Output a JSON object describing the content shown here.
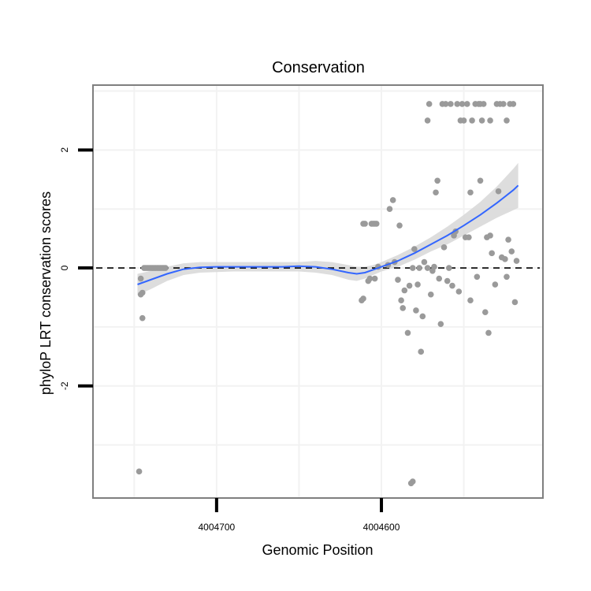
{
  "chart_data": {
    "type": "scatter",
    "title": "Conservation",
    "xlabel": "Genomic Position",
    "ylabel": "phyloP LRT conservation scores",
    "x_reversed": true,
    "xlim": [
      4004775,
      4004502
    ],
    "ylim": [
      -3.9,
      3.1
    ],
    "x_ticks": [
      {
        "value": 4004700,
        "label": "4004700"
      },
      {
        "value": 4004600,
        "label": "4004600"
      }
    ],
    "y_ticks": [
      {
        "value": 2,
        "label": "2"
      },
      {
        "value": 0,
        "label": "0"
      },
      {
        "value": -2,
        "label": "-2"
      }
    ],
    "reference_line": {
      "y": 0,
      "style": "dashed"
    },
    "grid": true,
    "colors": {
      "points": "#9a9a9a",
      "smooth": "#3366ff",
      "ribbon": "#d9d9d9",
      "panel_border": "#7f7f7f",
      "grid": "#f2f2f2",
      "reference": "#000000"
    },
    "series": [
      {
        "name": "scores",
        "points": [
          [
            4004747,
            -3.45
          ],
          [
            4004746,
            -0.18
          ],
          [
            4004746,
            -0.45
          ],
          [
            4004745,
            -0.42
          ],
          [
            4004745,
            -0.85
          ],
          [
            4004744,
            0.0
          ],
          [
            4004743,
            0.0
          ],
          [
            4004742,
            0.0
          ],
          [
            4004741,
            0.0
          ],
          [
            4004740,
            0.0
          ],
          [
            4004739,
            0.0
          ],
          [
            4004738,
            0.0
          ],
          [
            4004737,
            0.0
          ],
          [
            4004736,
            0.0
          ],
          [
            4004735,
            0.0
          ],
          [
            4004734,
            0.0
          ],
          [
            4004733,
            0.0
          ],
          [
            4004732,
            0.0
          ],
          [
            4004731,
            0.0
          ],
          [
            4004612,
            -0.55
          ],
          [
            4004611,
            -0.52
          ],
          [
            4004611,
            0.75
          ],
          [
            4004610,
            0.75
          ],
          [
            4004608,
            -0.22
          ],
          [
            4004607,
            -0.18
          ],
          [
            4004606,
            0.75
          ],
          [
            4004605,
            0.75
          ],
          [
            4004604,
            0.75
          ],
          [
            4004603,
            0.75
          ],
          [
            4004604,
            -0.18
          ],
          [
            4004602,
            0.02
          ],
          [
            4004596,
            0.05
          ],
          [
            4004595,
            1.0
          ],
          [
            4004593,
            1.15
          ],
          [
            4004592,
            0.1
          ],
          [
            4004590,
            -0.2
          ],
          [
            4004589,
            0.72
          ],
          [
            4004588,
            -0.55
          ],
          [
            4004587,
            -0.68
          ],
          [
            4004586,
            -0.38
          ],
          [
            4004584,
            -1.1
          ],
          [
            4004583,
            -0.3
          ],
          [
            4004582,
            -3.65
          ],
          [
            4004581,
            -3.62
          ],
          [
            4004581,
            0.0
          ],
          [
            4004580,
            0.32
          ],
          [
            4004579,
            -0.72
          ],
          [
            4004578,
            -0.28
          ],
          [
            4004577,
            0.0
          ],
          [
            4004576,
            -1.42
          ],
          [
            4004575,
            -0.82
          ],
          [
            4004574,
            0.1
          ],
          [
            4004572,
            0.0
          ],
          [
            4004572,
            2.5
          ],
          [
            4004571,
            2.78
          ],
          [
            4004570,
            -0.45
          ],
          [
            4004569,
            -0.05
          ],
          [
            4004568,
            0.02
          ],
          [
            4004567,
            1.28
          ],
          [
            4004566,
            1.48
          ],
          [
            4004565,
            -0.18
          ],
          [
            4004564,
            -0.95
          ],
          [
            4004563,
            2.78
          ],
          [
            4004562,
            0.35
          ],
          [
            4004561,
            2.78
          ],
          [
            4004560,
            -0.22
          ],
          [
            4004559,
            0.0
          ],
          [
            4004558,
            2.78
          ],
          [
            4004557,
            -0.3
          ],
          [
            4004556,
            0.55
          ],
          [
            4004555,
            0.62
          ],
          [
            4004554,
            2.78
          ],
          [
            4004553,
            -0.4
          ],
          [
            4004552,
            2.5
          ],
          [
            4004551,
            2.78
          ],
          [
            4004550,
            2.5
          ],
          [
            4004549,
            0.52
          ],
          [
            4004548,
            2.78
          ],
          [
            4004547,
            0.52
          ],
          [
            4004546,
            -0.55
          ],
          [
            4004546,
            1.28
          ],
          [
            4004545,
            2.5
          ],
          [
            4004543,
            2.78
          ],
          [
            4004542,
            -0.15
          ],
          [
            4004541,
            2.78
          ],
          [
            4004540,
            1.48
          ],
          [
            4004540,
            2.78
          ],
          [
            4004539,
            2.5
          ],
          [
            4004538,
            2.78
          ],
          [
            4004537,
            -0.75
          ],
          [
            4004536,
            0.52
          ],
          [
            4004535,
            -1.1
          ],
          [
            4004534,
            0.55
          ],
          [
            4004534,
            2.5
          ],
          [
            4004533,
            0.25
          ],
          [
            4004531,
            -0.28
          ],
          [
            4004530,
            2.78
          ],
          [
            4004529,
            1.3
          ],
          [
            4004528,
            2.78
          ],
          [
            4004527,
            0.18
          ],
          [
            4004526,
            2.78
          ],
          [
            4004525,
            0.15
          ],
          [
            4004524,
            2.5
          ],
          [
            4004524,
            -0.15
          ],
          [
            4004523,
            0.48
          ],
          [
            4004522,
            2.78
          ],
          [
            4004521,
            0.28
          ],
          [
            4004520,
            2.78
          ],
          [
            4004519,
            -0.58
          ],
          [
            4004518,
            0.12
          ]
        ]
      }
    ],
    "smooth": {
      "method": "loess",
      "line": [
        [
          4004748,
          -0.28
        ],
        [
          4004740,
          -0.2
        ],
        [
          4004730,
          -0.1
        ],
        [
          4004720,
          -0.02
        ],
        [
          4004710,
          0.01
        ],
        [
          4004700,
          0.02
        ],
        [
          4004690,
          0.02
        ],
        [
          4004680,
          0.02
        ],
        [
          4004670,
          0.02
        ],
        [
          4004660,
          0.02
        ],
        [
          4004650,
          0.03
        ],
        [
          4004640,
          0.02
        ],
        [
          4004630,
          -0.02
        ],
        [
          4004620,
          -0.08
        ],
        [
          4004615,
          -0.1
        ],
        [
          4004610,
          -0.08
        ],
        [
          4004605,
          -0.03
        ],
        [
          4004600,
          0.02
        ],
        [
          4004590,
          0.12
        ],
        [
          4004580,
          0.25
        ],
        [
          4004570,
          0.4
        ],
        [
          4004560,
          0.55
        ],
        [
          4004550,
          0.72
        ],
        [
          4004540,
          0.9
        ],
        [
          4004530,
          1.1
        ],
        [
          4004520,
          1.32
        ],
        [
          4004517,
          1.4
        ]
      ],
      "band_upper": [
        [
          4004748,
          -0.1
        ],
        [
          4004740,
          -0.05
        ],
        [
          4004730,
          0.02
        ],
        [
          4004720,
          0.08
        ],
        [
          4004710,
          0.1
        ],
        [
          4004700,
          0.1
        ],
        [
          4004690,
          0.1
        ],
        [
          4004680,
          0.1
        ],
        [
          4004670,
          0.1
        ],
        [
          4004660,
          0.1
        ],
        [
          4004650,
          0.1
        ],
        [
          4004640,
          0.12
        ],
        [
          4004630,
          0.1
        ],
        [
          4004620,
          0.05
        ],
        [
          4004615,
          0.02
        ],
        [
          4004610,
          0.02
        ],
        [
          4004605,
          0.05
        ],
        [
          4004600,
          0.1
        ],
        [
          4004590,
          0.22
        ],
        [
          4004580,
          0.36
        ],
        [
          4004570,
          0.52
        ],
        [
          4004560,
          0.7
        ],
        [
          4004550,
          0.9
        ],
        [
          4004540,
          1.12
        ],
        [
          4004530,
          1.38
        ],
        [
          4004520,
          1.68
        ],
        [
          4004517,
          1.78
        ]
      ],
      "band_lower": [
        [
          4004748,
          -0.46
        ],
        [
          4004740,
          -0.36
        ],
        [
          4004730,
          -0.22
        ],
        [
          4004720,
          -0.12
        ],
        [
          4004710,
          -0.08
        ],
        [
          4004700,
          -0.07
        ],
        [
          4004690,
          -0.06
        ],
        [
          4004680,
          -0.06
        ],
        [
          4004670,
          -0.06
        ],
        [
          4004660,
          -0.06
        ],
        [
          4004650,
          -0.06
        ],
        [
          4004640,
          -0.08
        ],
        [
          4004630,
          -0.12
        ],
        [
          4004620,
          -0.2
        ],
        [
          4004615,
          -0.22
        ],
        [
          4004610,
          -0.18
        ],
        [
          4004605,
          -0.12
        ],
        [
          4004600,
          -0.06
        ],
        [
          4004590,
          0.02
        ],
        [
          4004580,
          0.14
        ],
        [
          4004570,
          0.28
        ],
        [
          4004560,
          0.4
        ],
        [
          4004550,
          0.55
        ],
        [
          4004540,
          0.7
        ],
        [
          4004530,
          0.85
        ],
        [
          4004520,
          0.98
        ],
        [
          4004517,
          1.02
        ]
      ]
    }
  }
}
